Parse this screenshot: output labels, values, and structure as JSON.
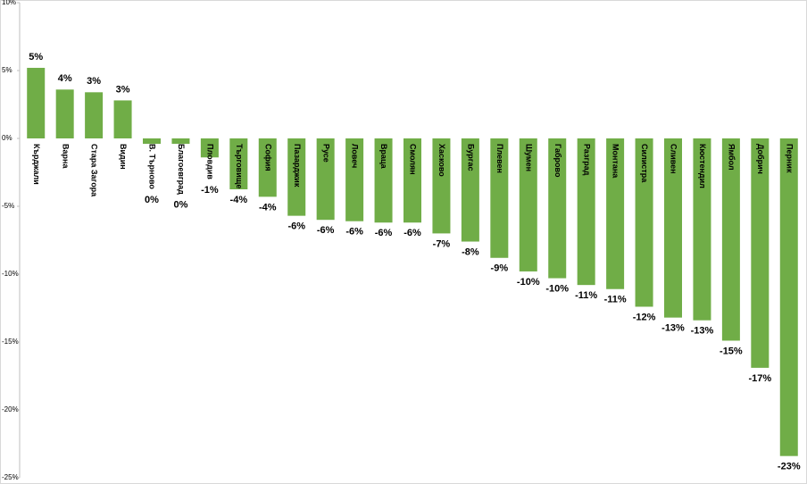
{
  "chart_data": {
    "type": "bar",
    "categories": [
      "Кърджали",
      "Варна",
      "Стара Загора",
      "Видин",
      "В. Търново",
      "Благоевград",
      "Пловдив",
      "Търговище",
      "София",
      "Пазарджик",
      "Русе",
      "Ловеч",
      "Враца",
      "Смолян",
      "Хасково",
      "Бургас",
      "Плевен",
      "Шумен",
      "Габрово",
      "Разград",
      "Монтана",
      "Силистра",
      "Сливен",
      "Кюстендил",
      "Ямбол",
      "Добрич",
      "Перник"
    ],
    "values": [
      5.2,
      3.6,
      3.4,
      2.8,
      -0.4,
      -0.4,
      -1.4,
      -3.75,
      -4.3,
      -5.7,
      -6.0,
      -6.1,
      -6.2,
      -6.2,
      -7.0,
      -7.6,
      -8.8,
      -9.8,
      -10.3,
      -10.8,
      -11.1,
      -12.4,
      -13.2,
      -13.4,
      -14.9,
      -16.9,
      -23.4
    ],
    "value_labels": [
      "5%",
      "4%",
      "3%",
      "3%",
      "0%",
      "0%",
      "-1%",
      "-4%",
      "-4%",
      "-6%",
      "-6%",
      "-6%",
      "-6%",
      "-6%",
      "-7%",
      "-8%",
      "-9%",
      "-10%",
      "-10%",
      "-11%",
      "-11%",
      "-12%",
      "-13%",
      "-13%",
      "-15%",
      "-17%",
      "-23%"
    ],
    "color": "#70ad47",
    "ylim": [
      -25,
      10
    ],
    "yticks": [
      {
        "value": -25,
        "label": "-25%"
      },
      {
        "value": -20,
        "label": "-20%"
      },
      {
        "value": -15,
        "label": "-15%"
      },
      {
        "value": -10,
        "label": "-10%"
      },
      {
        "value": -5,
        "label": "-5%"
      },
      {
        "value": 0,
        "label": "0%"
      },
      {
        "value": 5,
        "label": "5%"
      },
      {
        "value": 10,
        "label": "10%"
      }
    ],
    "grid": false
  }
}
